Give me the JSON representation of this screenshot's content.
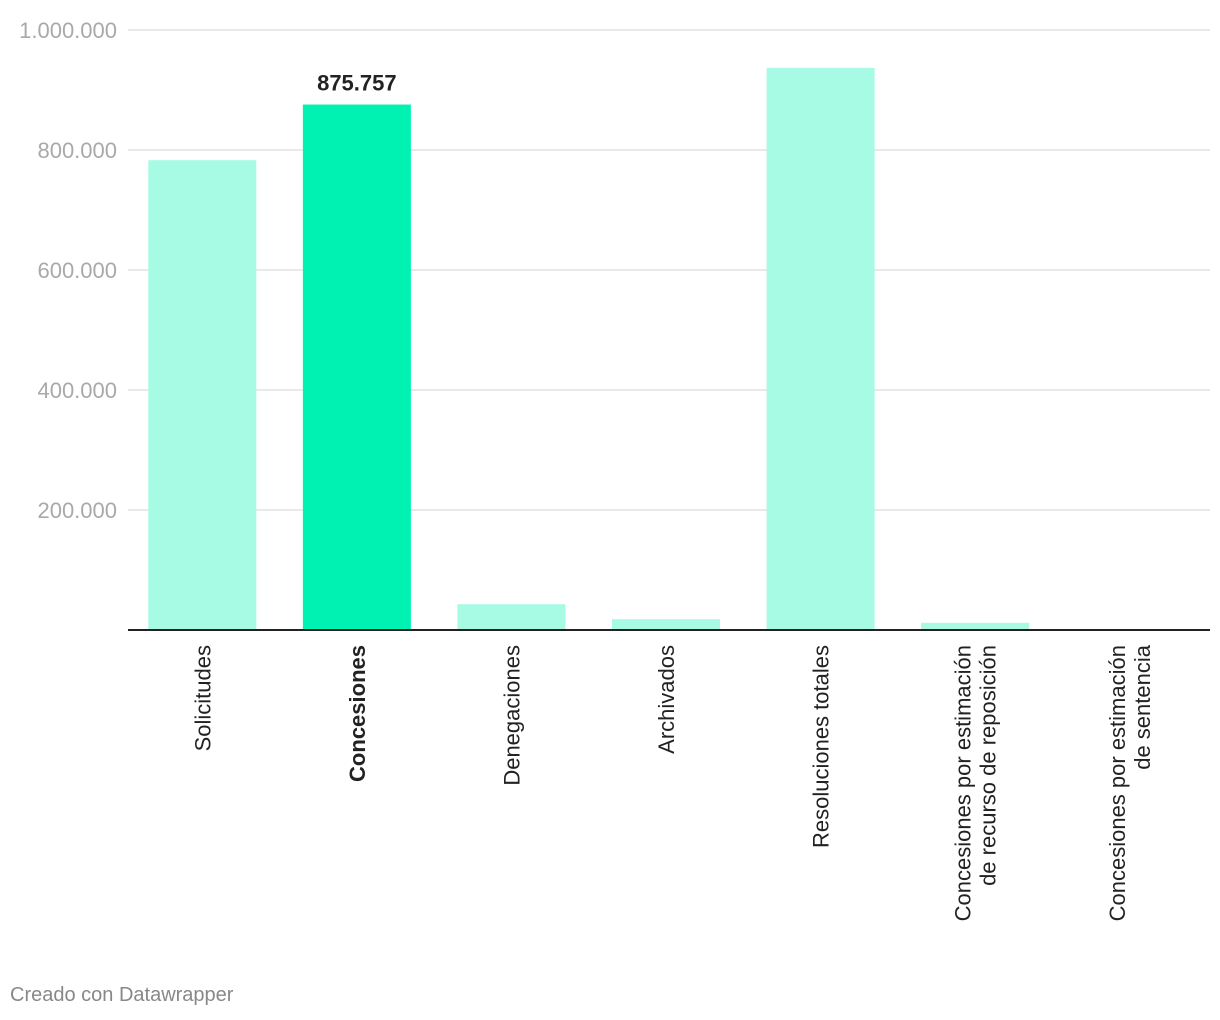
{
  "chart_data": {
    "type": "bar",
    "categories": [
      [
        "Solicitudes"
      ],
      [
        "Concesiones"
      ],
      [
        "Denegaciones"
      ],
      [
        "Archivados"
      ],
      [
        "Resoluciones totales"
      ],
      [
        "Concesiones por estimación",
        "de recurso de reposición"
      ],
      [
        "Concesiones por estimación",
        "de sentencia"
      ]
    ],
    "values": [
      783000,
      875757,
      43000,
      18000,
      937000,
      12000,
      1500
    ],
    "highlight_index": 1,
    "highlight_label": "875.757",
    "yticks": [
      {
        "value": 200000,
        "label": "200.000"
      },
      {
        "value": 400000,
        "label": "400.000"
      },
      {
        "value": 600000,
        "label": "600.000"
      },
      {
        "value": 800000,
        "label": "800.000"
      },
      {
        "value": 1000000,
        "label": "1.000.000"
      }
    ],
    "ylim": [
      0,
      1000000
    ],
    "grid": true,
    "colors": {
      "bar": "#a7fae3",
      "highlight": "#00f2b2",
      "grid": "#e2e2e2",
      "axis": "#222222",
      "tick_text": "#a9a9a9",
      "label_text": "#222222"
    }
  },
  "footer": {
    "credit": "Creado con Datawrapper"
  }
}
